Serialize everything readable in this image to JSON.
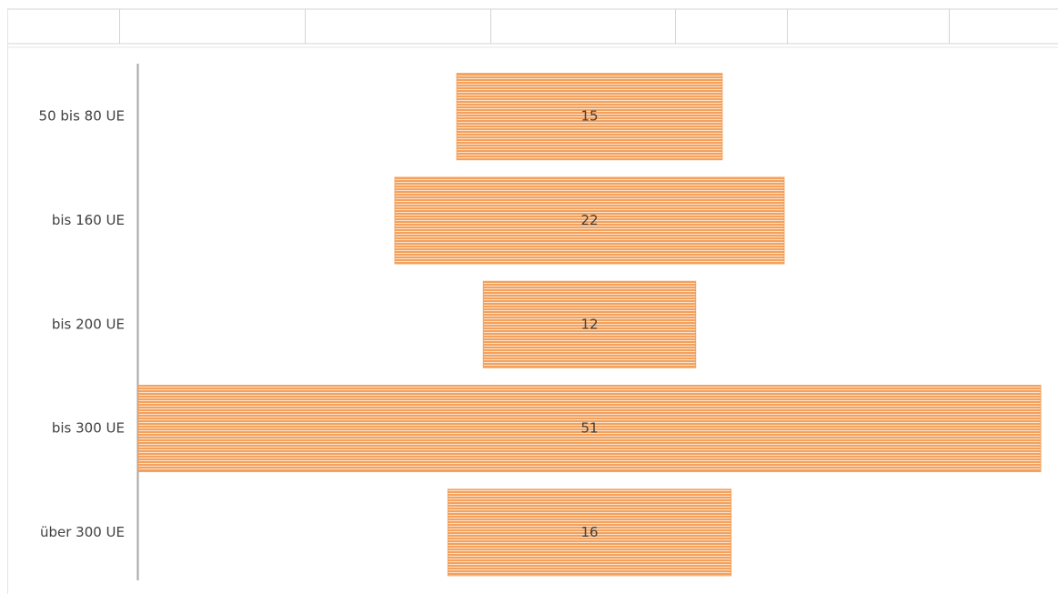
{
  "chart_data": {
    "type": "funnel",
    "categories": [
      "50 bis 80 UE",
      "bis 160 UE",
      "bis 200 UE",
      "bis 300 UE",
      "über 300 UE"
    ],
    "values": [
      15,
      22,
      12,
      51,
      16
    ],
    "color": "#f3a15c"
  }
}
